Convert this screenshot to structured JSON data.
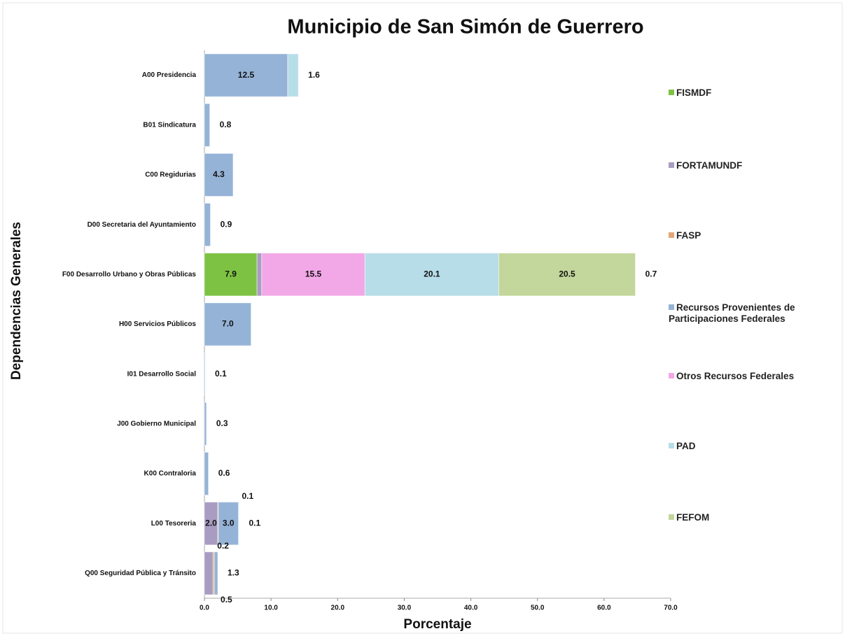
{
  "chart_data": {
    "type": "stacked-bar-horizontal",
    "title": "Municipio de San Simón de Guerrero",
    "xlabel": "Porcentaje",
    "ylabel": "Dependencias Generales",
    "categories": [
      "A00 Presidencia",
      "B01 Sindicatura",
      "C00 Regidurias",
      "D00 Secretaria del Ayuntamiento",
      "F00 Desarrollo Urbano y Obras Públicas",
      "H00 Servicios Públicos",
      "I01 Desarrollo Social",
      "J00 Gobierno Municipal",
      "K00 Contraloria",
      "L00 Tesoreria",
      "Q00 Seguridad Pública y Tránsito"
    ],
    "series": [
      {
        "name": "FISMDF",
        "color": "#7dc242",
        "values": [
          null,
          null,
          null,
          null,
          7.9,
          null,
          null,
          null,
          null,
          null,
          null
        ],
        "value_labels": [
          null,
          null,
          null,
          null,
          "7.9",
          null,
          null,
          null,
          null,
          null,
          null
        ]
      },
      {
        "name": "FORTAMUNDF",
        "color": "#a99cc2",
        "values": [
          null,
          null,
          null,
          null,
          0.7,
          null,
          null,
          null,
          null,
          2.0,
          1.3
        ],
        "value_labels": [
          null,
          null,
          null,
          null,
          "0.7",
          null,
          null,
          null,
          null,
          "2.0",
          "1.3"
        ]
      },
      {
        "name": "FASP",
        "color": "#e5a57a",
        "values": [
          null,
          null,
          null,
          null,
          null,
          null,
          null,
          null,
          null,
          0.1,
          0.2
        ],
        "value_labels": [
          null,
          null,
          null,
          null,
          null,
          null,
          null,
          null,
          null,
          "0.1",
          "0.2"
        ]
      },
      {
        "name": "Recursos Provenientes de Participaciones Federales",
        "color": "#95b3d7",
        "values": [
          12.5,
          0.8,
          4.3,
          0.9,
          null,
          7.0,
          0.1,
          0.3,
          0.6,
          3.0,
          0.5
        ],
        "value_labels": [
          "12.5",
          "0.8",
          "4.3",
          "0.9",
          null,
          "7.0",
          "0.1",
          "0.3",
          "0.6",
          "3.0",
          "0.5"
        ]
      },
      {
        "name": "Otros Recursos Federales",
        "color": "#f2a8e6",
        "values": [
          null,
          null,
          null,
          null,
          15.5,
          null,
          null,
          null,
          null,
          null,
          null
        ],
        "value_labels": [
          null,
          null,
          null,
          null,
          "15.5",
          null,
          null,
          null,
          null,
          null,
          null
        ]
      },
      {
        "name": "PAD",
        "color": "#b7dde8",
        "values": [
          1.6,
          null,
          null,
          null,
          20.1,
          null,
          null,
          null,
          null,
          0.1,
          null
        ],
        "value_labels": [
          "1.6",
          null,
          null,
          null,
          "20.1",
          null,
          null,
          null,
          null,
          "0.1",
          null
        ]
      },
      {
        "name": "FEFOM",
        "color": "#c3d69b",
        "values": [
          null,
          null,
          null,
          null,
          20.5,
          null,
          null,
          null,
          null,
          null,
          null
        ],
        "value_labels": [
          null,
          null,
          null,
          null,
          "20.5",
          null,
          null,
          null,
          null,
          null,
          null
        ]
      }
    ],
    "xlim": [
      0,
      70
    ],
    "xticks": [
      {
        "value": 0,
        "label": "0.0"
      },
      {
        "value": 10,
        "label": "10.0"
      },
      {
        "value": 20,
        "label": "20.0"
      },
      {
        "value": 30,
        "label": "30.0"
      },
      {
        "value": 40,
        "label": "40.0"
      },
      {
        "value": 50,
        "label": "50.0"
      },
      {
        "value": 60,
        "label": "60.0"
      },
      {
        "value": 70,
        "label": "70.0"
      }
    ],
    "legend": "right"
  }
}
